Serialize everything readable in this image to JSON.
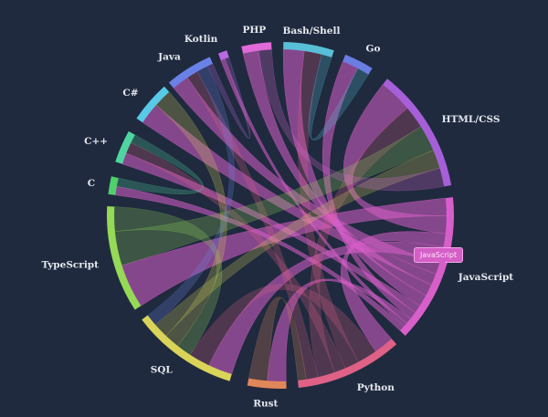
{
  "chart_data": {
    "type": "chord",
    "title": "",
    "center": [
      307,
      236
    ],
    "outer_radius": 190,
    "arc_width": 8,
    "groups": [
      {
        "name": "Go",
        "color": "#6a7de0",
        "start": 22,
        "end": 32
      },
      {
        "name": "HTML/CSS",
        "color": "#a65fd8",
        "start": 38,
        "end": 80
      },
      {
        "name": "JavaScript",
        "color": "#d85fca",
        "start": 84,
        "end": 134
      },
      {
        "name": "Python",
        "color": "#df6186",
        "start": 138,
        "end": 174
      },
      {
        "name": "Rust",
        "color": "#e0875a",
        "start": 178,
        "end": 191
      },
      {
        "name": "SQL",
        "color": "#d9d458",
        "start": 197,
        "end": 233
      },
      {
        "name": "TypeScript",
        "color": "#95d957",
        "start": 237,
        "end": 273
      },
      {
        "name": "C",
        "color": "#4fd06a",
        "start": 277,
        "end": 283
      },
      {
        "name": "C++",
        "color": "#4fd6a0",
        "start": 288,
        "end": 299
      },
      {
        "name": "C#",
        "color": "#58c9e6",
        "start": 304,
        "end": 318
      },
      {
        "name": "Java",
        "color": "#6a82e8",
        "start": 320,
        "end": 336
      },
      {
        "name": "Kotlin",
        "color": "#b86ae0",
        "start": 339,
        "end": 342
      },
      {
        "name": "PHP",
        "color": "#e06ad8",
        "start": 347,
        "end": 357
      },
      {
        "name": "Bash/Shell",
        "color": "#58bfd9",
        "start": 1,
        "end": 18
      }
    ],
    "ribbons": [
      [
        "JavaScript",
        "TypeScript",
        0.9
      ],
      [
        "JavaScript",
        "HTML/CSS",
        0.9
      ],
      [
        "JavaScript",
        "Python",
        0.7
      ],
      [
        "JavaScript",
        "SQL",
        0.8
      ],
      [
        "JavaScript",
        "Java",
        0.6
      ],
      [
        "JavaScript",
        "C#",
        0.6
      ],
      [
        "JavaScript",
        "PHP",
        0.6
      ],
      [
        "JavaScript",
        "Bash/Shell",
        0.6
      ],
      [
        "JavaScript",
        "C++",
        0.4
      ],
      [
        "JavaScript",
        "Go",
        0.4
      ],
      [
        "JavaScript",
        "Rust",
        0.3
      ],
      [
        "JavaScript",
        "Kotlin",
        0.2
      ],
      [
        "JavaScript",
        "C",
        0.3
      ],
      [
        "Python",
        "SQL",
        0.7
      ],
      [
        "Python",
        "Bash/Shell",
        0.5
      ],
      [
        "Python",
        "C++",
        0.4
      ],
      [
        "Python",
        "HTML/CSS",
        0.6
      ],
      [
        "Python",
        "Java",
        0.4
      ],
      [
        "TypeScript",
        "HTML/CSS",
        0.7
      ],
      [
        "TypeScript",
        "SQL",
        0.5
      ],
      [
        "SQL",
        "C#",
        0.5
      ],
      [
        "SQL",
        "HTML/CSS",
        0.5
      ],
      [
        "Java",
        "SQL",
        0.4
      ],
      [
        "C++",
        "C",
        0.3
      ],
      [
        "Bash/Shell",
        "Go",
        0.3
      ],
      [
        "Rust",
        "Python",
        0.3
      ],
      [
        "Kotlin",
        "Java",
        0.2
      ],
      [
        "PHP",
        "HTML/CSS",
        0.5
      ]
    ]
  },
  "tooltip": {
    "text": "JavaScript"
  }
}
